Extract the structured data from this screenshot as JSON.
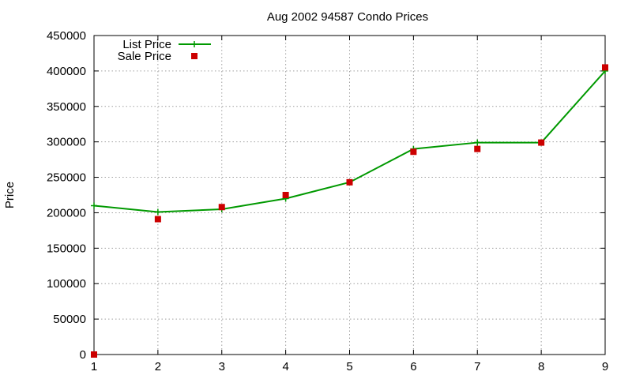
{
  "chart_data": {
    "type": "line",
    "title": "Aug 2002 94587 Condo Prices",
    "xlabel": "",
    "ylabel": "Price",
    "xlim": [
      1,
      9
    ],
    "ylim": [
      0,
      450000
    ],
    "x_ticks": [
      "1",
      "2",
      "3",
      "4",
      "5",
      "6",
      "7",
      "8",
      "9"
    ],
    "y_ticks": [
      "0",
      "50000",
      "100000",
      "150000",
      "200000",
      "250000",
      "300000",
      "350000",
      "400000",
      "450000"
    ],
    "grid": true,
    "legend_position": "top-left",
    "series": [
      {
        "name": "List Price",
        "style": "line+points",
        "marker": "plus",
        "color": "#009900",
        "x": [
          1,
          2,
          3,
          4,
          5,
          6,
          7,
          8,
          9
        ],
        "y": [
          210000,
          201000,
          205000,
          220000,
          243000,
          290000,
          299000,
          299000,
          400000
        ]
      },
      {
        "name": "Sale Price",
        "style": "points",
        "marker": "square",
        "color": "#cc0000",
        "x": [
          1,
          2,
          3,
          4,
          5,
          6,
          7,
          8,
          9
        ],
        "y": [
          0,
          191000,
          208000,
          225000,
          243000,
          286000,
          290000,
          299000,
          405000
        ]
      }
    ]
  }
}
